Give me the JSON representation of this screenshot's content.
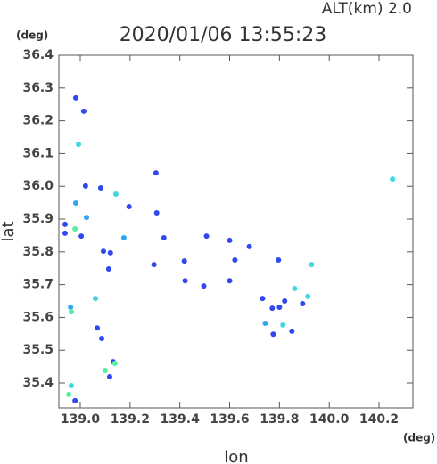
{
  "chart_data": {
    "type": "scatter",
    "title": "2020/01/06 13:55:23",
    "alt_label": "ALT(km)  2.0",
    "y_unit": "(deg)",
    "x_unit": "(deg)",
    "x_label": "lon",
    "y_label": "lat",
    "xlim": [
      138.914,
      140.336
    ],
    "ylim": [
      35.324,
      36.4
    ],
    "xticks": [
      {
        "value": 139,
        "label": "139.0"
      },
      139.2,
      139.4,
      139.6,
      139.8,
      {
        "value": 140,
        "label": "140.0"
      },
      140.2
    ],
    "yticks": [
      35.4,
      35.5,
      35.6,
      35.7,
      35.8,
      35.9,
      {
        "value": 36,
        "label": "36.0"
      },
      36.1,
      36.2,
      36.3,
      36.4
    ],
    "x": [
      138.982,
      139.014,
      138.993,
      139.021,
      139.082,
      139.143,
      139.304,
      140.254,
      138.982,
      139.025,
      139.196,
      139.307,
      138.939,
      138.939,
      138.979,
      139.004,
      139.175,
      139.336,
      139.093,
      139.121,
      139.114,
      139.296,
      139.418,
      139.507,
      139.6,
      139.679,
      139.621,
      139.421,
      139.496,
      139.6,
      139.929,
      139.796,
      138.961,
      138.964,
      139.061,
      139.068,
      139.086,
      139.732,
      139.771,
      139.8,
      139.821,
      139.861,
      139.893,
      139.914,
      139.814,
      139.85,
      139.775,
      139.743,
      139.132,
      139.139,
      139.1,
      139.118,
      138.964,
      138.954,
      138.979
    ],
    "y": [
      36.27,
      36.229,
      36.128,
      36.001,
      35.995,
      35.976,
      36.041,
      36.022,
      35.949,
      35.905,
      35.938,
      35.919,
      35.884,
      35.857,
      35.87,
      35.848,
      35.843,
      35.843,
      35.802,
      35.797,
      35.748,
      35.761,
      35.772,
      35.848,
      35.835,
      35.816,
      35.775,
      35.712,
      35.696,
      35.712,
      35.761,
      35.775,
      35.631,
      35.617,
      35.658,
      35.568,
      35.536,
      35.658,
      35.628,
      35.631,
      35.65,
      35.688,
      35.642,
      35.664,
      35.577,
      35.558,
      35.549,
      35.582,
      35.465,
      35.46,
      35.438,
      35.419,
      35.392,
      35.365,
      35.346
    ],
    "colors": [
      "#3048f0",
      "#3048f0",
      "#40d8e0",
      "#3048f0",
      "#3048f0",
      "#40d8e0",
      "#3048f0",
      "#40d8e0",
      "#30a8f0",
      "#30a8f0",
      "#3048f0",
      "#3048f0",
      "#3048f0",
      "#3048f0",
      "#50f0a0",
      "#3048f0",
      "#30a8f0",
      "#3048f0",
      "#3048f0",
      "#3048f0",
      "#3048f0",
      "#3048f0",
      "#3048f0",
      "#3048f0",
      "#3048f0",
      "#3048f0",
      "#3048f0",
      "#3048f0",
      "#3048f0",
      "#3048f0",
      "#40d8e0",
      "#3048f0",
      "#30a8f0",
      "#50f0a0",
      "#40d8e0",
      "#3048f0",
      "#3048f0",
      "#3048f0",
      "#3048f0",
      "#3048f0",
      "#3048f0",
      "#40d8e0",
      "#3048f0",
      "#40d8e0",
      "#40d8e0",
      "#3048f0",
      "#3048f0",
      "#30a8f0",
      "#3048f0",
      "#50f0a0",
      "#50f0a0",
      "#3048f0",
      "#40d8e0",
      "#50f0a0",
      "#3048f0"
    ]
  }
}
